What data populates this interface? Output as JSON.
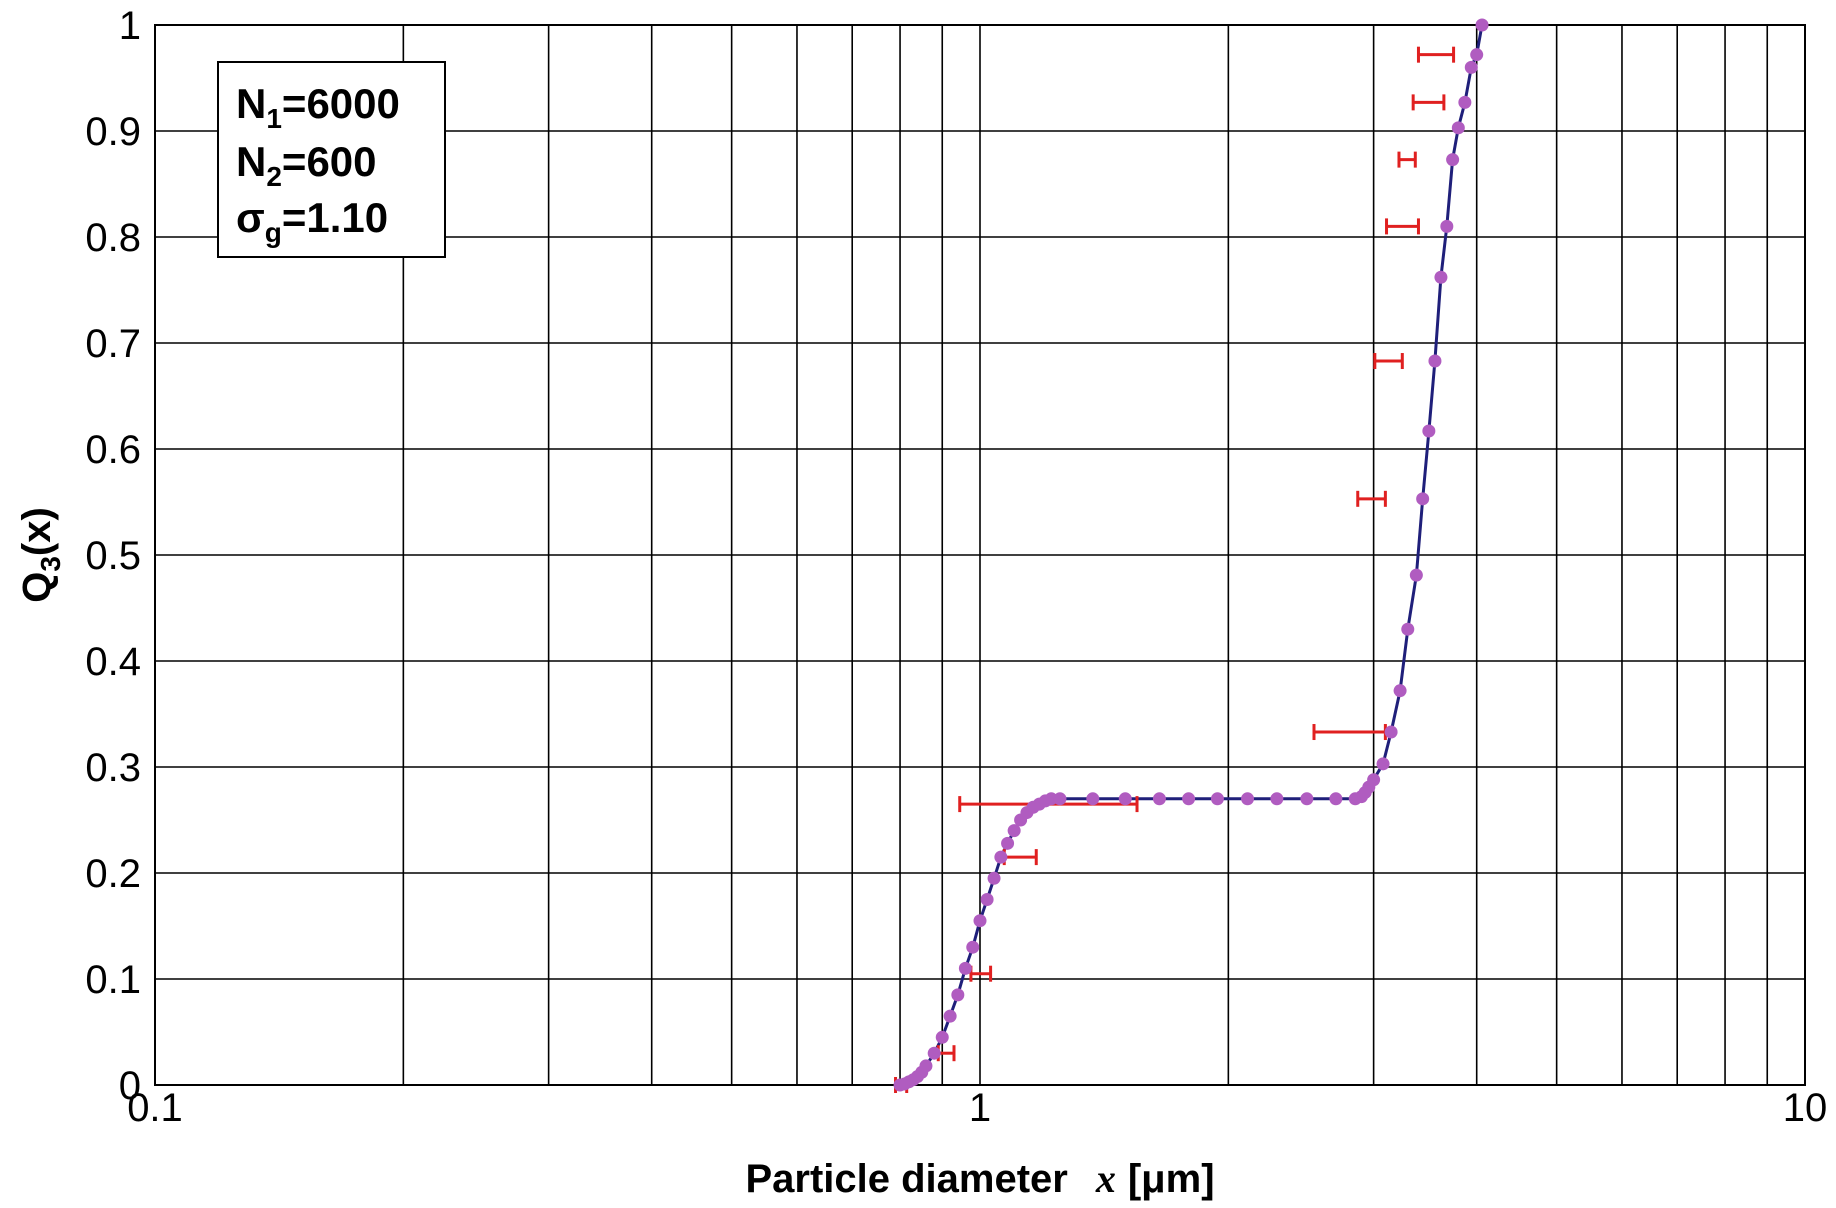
{
  "chart_data": {
    "type": "line",
    "title": "",
    "xlabel": {
      "main": "Particle diameter",
      "var": "x",
      "unit": "[μm]"
    },
    "ylabel": {
      "main": "Q",
      "sub": "3",
      "tail": "(x)"
    },
    "x_scale": "log",
    "xlim": [
      0.1,
      10
    ],
    "ylim": [
      0,
      1
    ],
    "grid": true,
    "x_tick_labels": [
      "0.1",
      "1",
      "10"
    ],
    "y_tick_labels": [
      "0",
      "0.1",
      "0.2",
      "0.3",
      "0.4",
      "0.5",
      "0.6",
      "0.7",
      "0.8",
      "0.9",
      "1"
    ],
    "annotation": {
      "lines": [
        {
          "main": "N",
          "sub": "1",
          "tail": "=6000"
        },
        {
          "main": "N",
          "sub": "2",
          "tail": "=600"
        },
        {
          "main": "σ",
          "sub": "g",
          "tail": "=1.10"
        }
      ],
      "position": "top-left"
    },
    "colors": {
      "line": "#1f1f7a",
      "markers": "#b05cc0",
      "error_bars": "#e02020",
      "grid": "#000000"
    },
    "series": [
      {
        "marker": "circle",
        "x": [
          0.8,
          0.81,
          0.82,
          0.83,
          0.84,
          0.85,
          0.86,
          0.88,
          0.9,
          0.92,
          0.94,
          0.96,
          0.98,
          1.0,
          1.02,
          1.04,
          1.06,
          1.08,
          1.1,
          1.12,
          1.14,
          1.16,
          1.18,
          1.2,
          1.22,
          1.25,
          1.37,
          1.5,
          1.65,
          1.79,
          1.94,
          2.11,
          2.29,
          2.49,
          2.7,
          2.85,
          2.9,
          2.93,
          2.96,
          3.0,
          3.08,
          3.15,
          3.23,
          3.3,
          3.38,
          3.44,
          3.5,
          3.56,
          3.62,
          3.68,
          3.74,
          3.8,
          3.87,
          3.94,
          4.0,
          4.06
        ],
        "y": [
          0.0,
          0.001,
          0.003,
          0.005,
          0.008,
          0.012,
          0.018,
          0.03,
          0.045,
          0.065,
          0.085,
          0.11,
          0.13,
          0.155,
          0.175,
          0.195,
          0.215,
          0.228,
          0.24,
          0.25,
          0.257,
          0.262,
          0.265,
          0.268,
          0.27,
          0.27,
          0.27,
          0.27,
          0.27,
          0.27,
          0.27,
          0.27,
          0.27,
          0.27,
          0.27,
          0.27,
          0.272,
          0.276,
          0.281,
          0.288,
          0.303,
          0.333,
          0.372,
          0.43,
          0.481,
          0.553,
          0.617,
          0.683,
          0.762,
          0.81,
          0.873,
          0.903,
          0.927,
          0.96,
          0.972,
          1.0
        ]
      }
    ],
    "error_bars": [
      {
        "x": 0.8,
        "y": 0.0,
        "xmin": 0.79,
        "xmax": 0.815
      },
      {
        "x": 0.91,
        "y": 0.03,
        "xmin": 0.89,
        "xmax": 0.93
      },
      {
        "x": 1.0,
        "y": 0.105,
        "xmin": 0.975,
        "xmax": 1.03
      },
      {
        "x": 1.12,
        "y": 0.215,
        "xmin": 1.07,
        "xmax": 1.17
      },
      {
        "x": 1.22,
        "y": 0.265,
        "xmin": 0.945,
        "xmax": 1.55
      },
      {
        "x": 3.15,
        "y": 0.333,
        "xmin": 2.54,
        "xmax": 3.1
      },
      {
        "x": 3.44,
        "y": 0.553,
        "xmin": 2.87,
        "xmax": 3.1
      },
      {
        "x": 3.56,
        "y": 0.683,
        "xmin": 3.01,
        "xmax": 3.25
      },
      {
        "x": 3.68,
        "y": 0.81,
        "xmin": 3.11,
        "xmax": 3.4
      },
      {
        "x": 3.74,
        "y": 0.873,
        "xmin": 3.22,
        "xmax": 3.37
      },
      {
        "x": 3.87,
        "y": 0.927,
        "xmin": 3.35,
        "xmax": 3.65
      },
      {
        "x": 3.94,
        "y": 0.972,
        "xmin": 3.4,
        "xmax": 3.75
      }
    ]
  }
}
